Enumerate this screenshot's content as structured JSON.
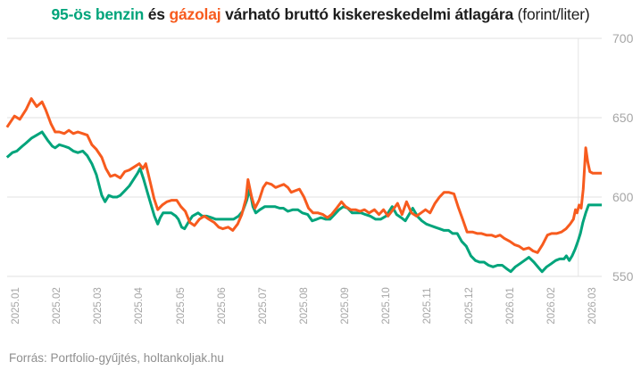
{
  "title": {
    "benzin": "95-ös benzin",
    "and": " és ",
    "gazolaj": "gázolaj",
    "rest": " várható bruttó kiskereskedelmi átlagára ",
    "unit": "(forint/liter)"
  },
  "footer": "Forrás: Portfolio-gyűjtés, holtankoljak.hu",
  "colors": {
    "benzin": "#00A47B",
    "gazolaj": "#F75B1E",
    "grid": "#E0E0E0",
    "divider": "#E4E4E4",
    "axis_text": "#A6A6A6",
    "title_text": "#1D1D1D",
    "footer_text": "#8F8F8F",
    "background": "#FFFFFF"
  },
  "chart_data": {
    "type": "line",
    "title": "95-ös benzin és gázolaj várható bruttó kiskereskedelmi átlagára (forint/liter)",
    "ylabel": "forint/liter",
    "ylim": [
      550,
      700
    ],
    "y_ticks": [
      700,
      650,
      600,
      550
    ],
    "y_tick_labels": [
      "700",
      "650",
      "600",
      "550"
    ],
    "x_tick_labels": [
      "2025.01",
      "2025.02",
      "2025.03",
      "2025.04",
      "2025.05",
      "2025.06",
      "2025.07",
      "2025.08",
      "2025.09",
      "2025.10",
      "2025.11",
      "2025.12",
      "2026.01",
      "2026.02",
      "2026.03"
    ],
    "x_unit": "months, 0 = 2025.01 tick",
    "grid": "horizontal",
    "legend_position": "in-title",
    "forecast_divider_x": 13.65,
    "series": [
      {
        "name": "95-ös benzin",
        "color_key": "benzin",
        "points": [
          [
            -0.22,
            625
          ],
          [
            -0.09,
            628
          ],
          [
            0.02,
            629
          ],
          [
            0.15,
            632
          ],
          [
            0.24,
            634
          ],
          [
            0.37,
            637
          ],
          [
            0.5,
            639
          ],
          [
            0.63,
            641
          ],
          [
            0.76,
            636
          ],
          [
            0.88,
            632
          ],
          [
            0.95,
            631
          ],
          [
            1.05,
            633
          ],
          [
            1.17,
            632
          ],
          [
            1.28,
            631
          ],
          [
            1.39,
            629
          ],
          [
            1.5,
            628
          ],
          [
            1.62,
            629
          ],
          [
            1.73,
            626
          ],
          [
            1.84,
            621
          ],
          [
            1.95,
            614
          ],
          [
            2.08,
            601
          ],
          [
            2.16,
            597
          ],
          [
            2.25,
            601
          ],
          [
            2.35,
            600
          ],
          [
            2.45,
            600
          ],
          [
            2.53,
            601
          ],
          [
            2.64,
            604
          ],
          [
            2.75,
            607
          ],
          [
            2.85,
            611
          ],
          [
            2.95,
            615
          ],
          [
            3.01,
            618
          ],
          [
            3.1,
            611
          ],
          [
            3.2,
            602
          ],
          [
            3.29,
            594
          ],
          [
            3.36,
            588
          ],
          [
            3.44,
            583
          ],
          [
            3.5,
            587
          ],
          [
            3.57,
            590
          ],
          [
            3.66,
            590
          ],
          [
            3.77,
            590
          ],
          [
            3.88,
            588
          ],
          [
            3.94,
            586
          ],
          [
            4.02,
            581
          ],
          [
            4.09,
            580
          ],
          [
            4.18,
            584
          ],
          [
            4.28,
            588
          ],
          [
            4.42,
            590
          ],
          [
            4.52,
            588
          ],
          [
            4.63,
            588
          ],
          [
            4.74,
            587
          ],
          [
            4.85,
            586
          ],
          [
            4.95,
            586
          ],
          [
            5.06,
            586
          ],
          [
            5.17,
            586
          ],
          [
            5.28,
            586
          ],
          [
            5.4,
            588
          ],
          [
            5.5,
            591
          ],
          [
            5.6,
            598
          ],
          [
            5.67,
            605
          ],
          [
            5.75,
            594
          ],
          [
            5.82,
            590
          ],
          [
            5.92,
            592
          ],
          [
            6.04,
            594
          ],
          [
            6.15,
            594
          ],
          [
            6.28,
            594
          ],
          [
            6.4,
            593
          ],
          [
            6.49,
            593
          ],
          [
            6.6,
            591
          ],
          [
            6.72,
            592
          ],
          [
            6.84,
            592
          ],
          [
            6.95,
            590
          ],
          [
            7.08,
            589
          ],
          [
            7.19,
            585
          ],
          [
            7.3,
            586
          ],
          [
            7.4,
            587
          ],
          [
            7.52,
            586
          ],
          [
            7.62,
            586
          ],
          [
            7.73,
            589
          ],
          [
            7.84,
            592
          ],
          [
            7.95,
            594
          ],
          [
            8.05,
            593
          ],
          [
            8.16,
            590
          ],
          [
            8.27,
            590
          ],
          [
            8.38,
            590
          ],
          [
            8.48,
            589
          ],
          [
            8.6,
            588
          ],
          [
            8.73,
            586
          ],
          [
            8.85,
            586
          ],
          [
            8.98,
            588
          ],
          [
            9.13,
            594
          ],
          [
            9.24,
            589
          ],
          [
            9.35,
            587
          ],
          [
            9.45,
            585
          ],
          [
            9.54,
            589
          ],
          [
            9.63,
            593
          ],
          [
            9.74,
            588
          ],
          [
            9.85,
            585
          ],
          [
            9.96,
            583
          ],
          [
            10.06,
            582
          ],
          [
            10.17,
            581
          ],
          [
            10.28,
            580
          ],
          [
            10.39,
            579
          ],
          [
            10.5,
            579
          ],
          [
            10.6,
            577
          ],
          [
            10.71,
            577
          ],
          [
            10.82,
            572
          ],
          [
            10.93,
            569
          ],
          [
            11.04,
            563
          ],
          [
            11.15,
            560
          ],
          [
            11.25,
            559
          ],
          [
            11.36,
            559
          ],
          [
            11.47,
            557
          ],
          [
            11.58,
            556
          ],
          [
            11.69,
            557
          ],
          [
            11.8,
            557
          ],
          [
            11.9,
            555
          ],
          [
            12.01,
            553
          ],
          [
            12.12,
            556
          ],
          [
            12.23,
            558
          ],
          [
            12.34,
            560
          ],
          [
            12.45,
            562
          ],
          [
            12.57,
            559
          ],
          [
            12.7,
            555
          ],
          [
            12.77,
            553
          ],
          [
            12.88,
            556
          ],
          [
            12.99,
            558
          ],
          [
            13.1,
            560
          ],
          [
            13.2,
            561
          ],
          [
            13.3,
            561
          ],
          [
            13.36,
            563
          ],
          [
            13.43,
            560
          ],
          [
            13.5,
            563
          ],
          [
            13.57,
            567
          ],
          [
            13.64,
            572
          ],
          [
            13.7,
            577
          ],
          [
            13.76,
            584
          ],
          [
            13.83,
            590
          ],
          [
            13.9,
            595
          ],
          [
            14.0,
            595
          ],
          [
            14.22,
            595
          ]
        ]
      },
      {
        "name": "gázolaj",
        "color_key": "gazolaj",
        "points": [
          [
            -0.22,
            644
          ],
          [
            -0.04,
            651
          ],
          [
            0.09,
            649
          ],
          [
            0.24,
            655
          ],
          [
            0.37,
            662
          ],
          [
            0.5,
            657
          ],
          [
            0.63,
            660
          ],
          [
            0.72,
            655
          ],
          [
            0.85,
            646
          ],
          [
            0.95,
            641
          ],
          [
            1.05,
            641
          ],
          [
            1.17,
            640
          ],
          [
            1.28,
            642
          ],
          [
            1.39,
            640
          ],
          [
            1.5,
            641
          ],
          [
            1.62,
            640
          ],
          [
            1.73,
            639
          ],
          [
            1.84,
            633
          ],
          [
            1.95,
            630
          ],
          [
            2.08,
            625
          ],
          [
            2.18,
            618
          ],
          [
            2.29,
            613
          ],
          [
            2.4,
            614
          ],
          [
            2.53,
            612
          ],
          [
            2.64,
            616
          ],
          [
            2.75,
            617
          ],
          [
            2.87,
            619
          ],
          [
            2.99,
            621
          ],
          [
            3.08,
            618
          ],
          [
            3.15,
            621
          ],
          [
            3.25,
            610
          ],
          [
            3.35,
            599
          ],
          [
            3.44,
            592
          ],
          [
            3.55,
            595
          ],
          [
            3.66,
            597
          ],
          [
            3.78,
            598
          ],
          [
            3.9,
            598
          ],
          [
            4.0,
            594
          ],
          [
            4.11,
            591
          ],
          [
            4.22,
            584
          ],
          [
            4.33,
            582
          ],
          [
            4.45,
            586
          ],
          [
            4.57,
            588
          ],
          [
            4.68,
            586
          ],
          [
            4.81,
            584
          ],
          [
            4.92,
            581
          ],
          [
            5.02,
            580
          ],
          [
            5.15,
            581
          ],
          [
            5.26,
            579
          ],
          [
            5.38,
            583
          ],
          [
            5.48,
            589
          ],
          [
            5.58,
            599
          ],
          [
            5.63,
            611
          ],
          [
            5.72,
            600
          ],
          [
            5.8,
            593
          ],
          [
            5.9,
            598
          ],
          [
            6.0,
            606
          ],
          [
            6.08,
            609
          ],
          [
            6.2,
            608
          ],
          [
            6.3,
            606
          ],
          [
            6.4,
            607
          ],
          [
            6.5,
            608
          ],
          [
            6.6,
            606
          ],
          [
            6.68,
            603
          ],
          [
            6.78,
            604
          ],
          [
            6.88,
            605
          ],
          [
            6.99,
            600
          ],
          [
            7.1,
            593
          ],
          [
            7.21,
            590
          ],
          [
            7.33,
            590
          ],
          [
            7.45,
            589
          ],
          [
            7.56,
            587
          ],
          [
            7.66,
            589
          ],
          [
            7.78,
            593
          ],
          [
            7.9,
            597
          ],
          [
            8.0,
            594
          ],
          [
            8.12,
            592
          ],
          [
            8.24,
            592
          ],
          [
            8.35,
            591
          ],
          [
            8.46,
            592
          ],
          [
            8.57,
            590
          ],
          [
            8.7,
            592
          ],
          [
            8.81,
            589
          ],
          [
            8.92,
            592
          ],
          [
            9.03,
            588
          ],
          [
            9.15,
            592
          ],
          [
            9.26,
            596
          ],
          [
            9.37,
            589
          ],
          [
            9.48,
            597
          ],
          [
            9.6,
            590
          ],
          [
            9.72,
            588
          ],
          [
            9.83,
            590
          ],
          [
            9.94,
            592
          ],
          [
            10.05,
            590
          ],
          [
            10.17,
            596
          ],
          [
            10.28,
            600
          ],
          [
            10.39,
            603
          ],
          [
            10.5,
            603
          ],
          [
            10.63,
            602
          ],
          [
            10.73,
            594
          ],
          [
            10.84,
            586
          ],
          [
            10.95,
            578
          ],
          [
            11.08,
            578
          ],
          [
            11.2,
            577
          ],
          [
            11.3,
            577
          ],
          [
            11.42,
            576
          ],
          [
            11.54,
            576
          ],
          [
            11.64,
            575
          ],
          [
            11.75,
            576
          ],
          [
            11.85,
            574
          ],
          [
            11.99,
            572
          ],
          [
            12.1,
            570
          ],
          [
            12.21,
            569
          ],
          [
            12.32,
            567
          ],
          [
            12.45,
            568
          ],
          [
            12.55,
            566
          ],
          [
            12.66,
            565
          ],
          [
            12.78,
            570
          ],
          [
            12.9,
            576
          ],
          [
            13.0,
            577
          ],
          [
            13.12,
            577
          ],
          [
            13.24,
            578
          ],
          [
            13.35,
            580
          ],
          [
            13.45,
            583
          ],
          [
            13.53,
            586
          ],
          [
            13.58,
            592
          ],
          [
            13.62,
            590
          ],
          [
            13.67,
            595
          ],
          [
            13.72,
            593
          ],
          [
            13.77,
            605
          ],
          [
            13.83,
            631
          ],
          [
            13.88,
            622
          ],
          [
            13.93,
            616
          ],
          [
            14.0,
            615
          ],
          [
            14.22,
            615
          ]
        ]
      }
    ]
  }
}
